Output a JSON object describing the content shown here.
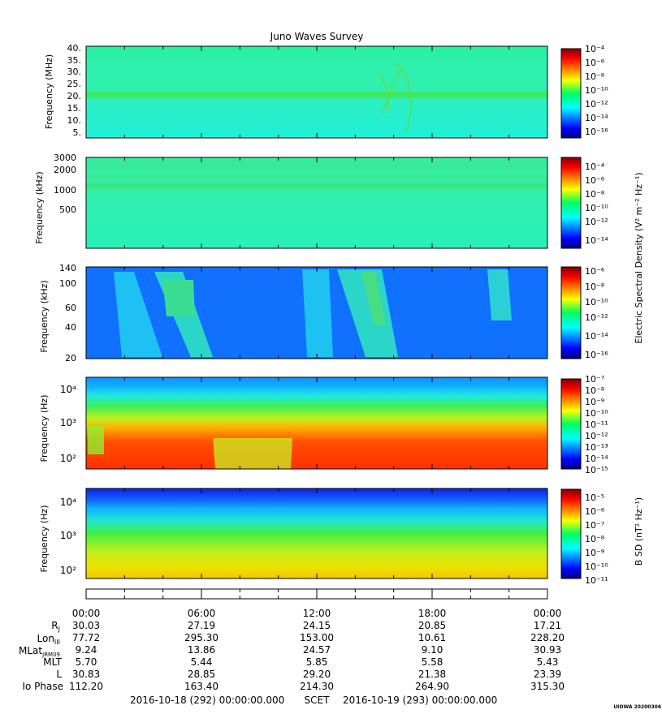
{
  "title": "Juno Waves Survey",
  "colorbar_label_electric": "Electric Spectral Density (V² m⁻² Hz⁻¹)",
  "colorbar_label_magnetic": "B SD (nT² Hz⁻¹)",
  "panels": [
    {
      "ylabel": "Frequency (MHz)",
      "yticks": [
        "40.",
        "35.",
        "30.",
        "25.",
        "20.",
        "15.",
        "10.",
        "5."
      ],
      "cbar_ticks": [
        "10⁻⁴",
        "10⁻⁶",
        "10⁻⁸",
        "10⁻¹⁰",
        "10⁻¹²",
        "10⁻¹⁴",
        "10⁻¹⁶"
      ]
    },
    {
      "ylabel": "Frequency (kHz)",
      "yticks": [
        "3000",
        "2000",
        "1000",
        "500"
      ],
      "cbar_ticks": [
        "10⁻⁴",
        "10⁻⁶",
        "10⁻⁸",
        "10⁻¹⁰",
        "10⁻¹²",
        "10⁻¹⁴"
      ]
    },
    {
      "ylabel": "Frequency (kHz)",
      "yticks": [
        "140",
        "100",
        "60",
        "40",
        "20"
      ],
      "cbar_ticks": [
        "10⁻⁶",
        "10⁻⁸",
        "10⁻¹⁰",
        "10⁻¹²",
        "10⁻¹⁴",
        "10⁻¹⁶"
      ]
    },
    {
      "ylabel": "Frequency (Hz)",
      "yticks": [
        "10⁴",
        "10³",
        "10²"
      ],
      "cbar_ticks": [
        "10⁻⁷",
        "10⁻⁸",
        "10⁻⁹",
        "10⁻¹⁰",
        "10⁻¹¹",
        "10⁻¹²",
        "10⁻¹³",
        "10⁻¹⁴",
        "10⁻¹⁵"
      ]
    },
    {
      "ylabel": "Frequency (Hz)",
      "yticks": [
        "10⁴",
        "10³",
        "10²"
      ],
      "cbar_ticks": [
        "10⁻⁵",
        "10⁻⁶",
        "10⁻⁷",
        "10⁻⁸",
        "10⁻⁹",
        "10⁻¹⁰",
        "10⁻¹¹"
      ]
    }
  ],
  "ephemeris": {
    "time_labels": [
      "00:00",
      "06:00",
      "12:00",
      "18:00",
      "00:00"
    ],
    "rows": [
      {
        "label": "Rj",
        "values": [
          "30.03",
          "27.19",
          "24.15",
          "20.85",
          "17.21"
        ]
      },
      {
        "label": "LonIII",
        "values": [
          "77.72",
          "295.30",
          "153.00",
          "10.61",
          "228.20"
        ]
      },
      {
        "label": "MLatJRM09",
        "values": [
          "9.24",
          "13.86",
          "24.57",
          "9.10",
          "30.93"
        ]
      },
      {
        "label": "MLT",
        "values": [
          "5.70",
          "5.44",
          "5.85",
          "5.58",
          "5.43"
        ]
      },
      {
        "label": "L",
        "values": [
          "30.83",
          "28.85",
          "29.20",
          "21.38",
          "23.39"
        ]
      },
      {
        "label": "Io Phase",
        "values": [
          "112.20",
          "163.40",
          "214.30",
          "264.90",
          "315.30"
        ]
      }
    ]
  },
  "footer": {
    "start": "2016-10-18 (292) 00:00:00.000",
    "scet": "SCET",
    "end": "2016-10-19 (293) 00:00:00.000",
    "stamp": "UIOWA 20200306"
  },
  "chart_data": [
    {
      "type": "heatmap",
      "title": "Juno Waves Survey",
      "ylabel": "Frequency (MHz)",
      "x_range": [
        "00:00",
        "00:00"
      ],
      "y_ticks": [
        40,
        35,
        30,
        25,
        20,
        15,
        10,
        5
      ],
      "colorbar_range": [
        "1e-16",
        "1e-4"
      ],
      "features": "uniform background near 1e-13; persistent emission band near 21 MHz; arc-shaped emission near 16:30 between 10 and 35 MHz"
    },
    {
      "type": "heatmap",
      "ylabel": "Frequency (kHz)",
      "y_scale": "log",
      "y_ticks": [
        3000,
        2000,
        1000,
        500
      ],
      "colorbar_range": [
        "1e-15",
        "1e-4"
      ],
      "features": "uniform background near 1e-12; stronger bands near 1000-1200 kHz and 2000-2500 kHz"
    },
    {
      "type": "heatmap",
      "ylabel": "Frequency (kHz)",
      "y_ticks": [
        140,
        100,
        60,
        40,
        20
      ],
      "colorbar_range": [
        "1e-16",
        "1e-6"
      ],
      "features": "background near 1e-14; emission bursts near 01:30-06:00, 11:30-16:00 and 21:30-23:00"
    },
    {
      "type": "heatmap",
      "ylabel": "Frequency (Hz)",
      "y_scale": "log",
      "y_ticks": [
        10000,
        1000,
        100
      ],
      "colorbar_range": [
        "1e-15",
        "1e-7"
      ],
      "features": "intense emission below ~1000 Hz near 1e-8 to 1e-9; decreasing intensity with frequency; weaker near 07:00-10:00"
    },
    {
      "type": "heatmap",
      "ylabel": "Frequency (Hz)",
      "y_scale": "log",
      "y_ticks": [
        10000,
        1000,
        100
      ],
      "colorbar_range": [
        "1e-11",
        "1e-4"
      ],
      "features": "intensity near 1e-7 at ~100 Hz decreasing to 1e-11 above 10 kHz"
    }
  ]
}
